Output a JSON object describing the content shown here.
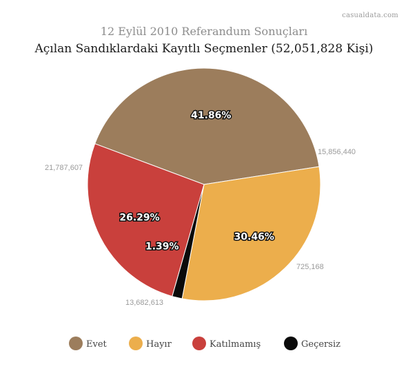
{
  "brand": "casualdata.com",
  "chart_data": {
    "type": "pie",
    "title": "12 Eylül 2010 Referandum Sonuçları",
    "subtitle": "Açılan Sandıklardaki Kayıtlı Seçmenler (52,051,828 Kişi)",
    "legend_position": "bottom",
    "slices": [
      {
        "name": "Evet",
        "value": 21787607,
        "value_label": "21,787,607",
        "percent_label": "41.86%",
        "color": "#9c7d5c"
      },
      {
        "name": "Hayır",
        "value": 15856440,
        "value_label": "15,856,440",
        "percent_label": "30.46%",
        "color": "#ecae4c"
      },
      {
        "name": "Geçersiz",
        "value": 725168,
        "value_label": "725,168",
        "percent_label": "1.39%",
        "color": "#0a0a0a"
      },
      {
        "name": "Katılmamış",
        "value": 13682613,
        "value_label": "13,682,613",
        "percent_label": "26.29%",
        "color": "#c9403c"
      }
    ],
    "legend": [
      {
        "name": "Evet",
        "color": "#9c7d5c"
      },
      {
        "name": "Hayır",
        "color": "#ecae4c"
      },
      {
        "name": "Katılmamış",
        "color": "#c9403c"
      },
      {
        "name": "Geçersiz",
        "color": "#0a0a0a"
      }
    ]
  }
}
